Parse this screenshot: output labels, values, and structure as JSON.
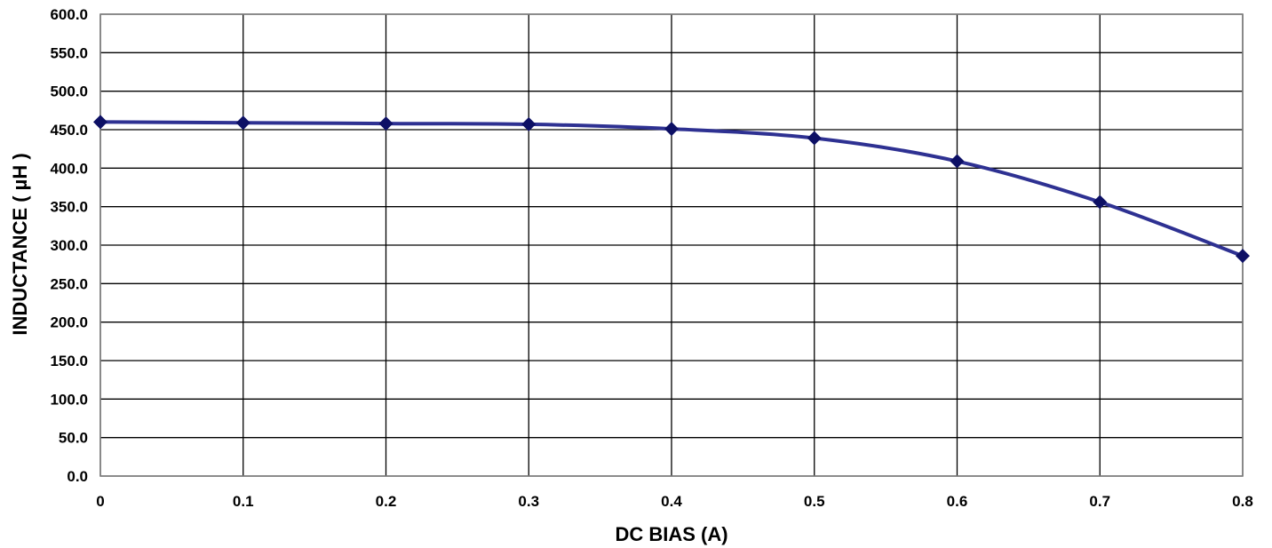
{
  "chart_data": {
    "type": "line",
    "title": "",
    "xlabel": "DC BIAS (A)",
    "ylabel": "INDUCTANCE ( µH )",
    "x_ticks": [
      "0",
      "0.1",
      "0.2",
      "0.3",
      "0.4",
      "0.5",
      "0.6",
      "0.7",
      "0.8"
    ],
    "y_ticks": [
      "0.0",
      "50.0",
      "100.0",
      "150.0",
      "200.0",
      "250.0",
      "300.0",
      "350.0",
      "400.0",
      "450.0",
      "500.0",
      "550.0",
      "600.0"
    ],
    "xlim": [
      0,
      0.8
    ],
    "ylim": [
      0,
      600
    ],
    "grid": true,
    "legend": "none",
    "series": [
      {
        "x": [
          0,
          0.1,
          0.2,
          0.3,
          0.4,
          0.5,
          0.6,
          0.7,
          0.8
        ],
        "values": [
          460,
          459,
          458,
          457,
          451,
          439,
          409,
          356,
          286
        ],
        "color": "#2e3192",
        "marker": "diamond",
        "marker_color": "#0d1065"
      }
    ]
  }
}
